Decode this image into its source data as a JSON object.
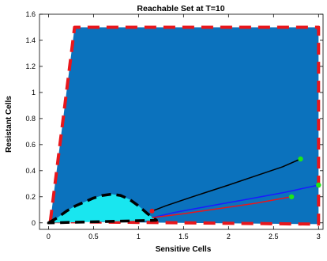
{
  "chart_data": {
    "type": "area",
    "title": "Reachable Set at T=10",
    "xlabel": "Sensitive Cells",
    "ylabel": "Resistant Cells",
    "xlim": [
      -0.1,
      3.05
    ],
    "ylim": [
      -0.05,
      1.6
    ],
    "xticks": [
      0,
      0.5,
      1,
      1.5,
      2,
      2.5,
      3
    ],
    "xtick_labels": [
      "0",
      "0.5",
      "1",
      "1.5",
      "2",
      "2.5",
      "3"
    ],
    "yticks": [
      0,
      0.2,
      0.4,
      0.6,
      0.8,
      1,
      1.2,
      1.4,
      1.6
    ],
    "ytick_labels": [
      "0",
      "0.2",
      "0.4",
      "0.6",
      "0.8",
      "1",
      "1.2",
      "1.4",
      "1.6"
    ],
    "grid": false,
    "legend": "none",
    "colors": {
      "reachable_fill": "#0b72bd",
      "reachable_boundary": "#e8161b",
      "inner_fill": "#19e6ef",
      "inner_boundary": "#000000",
      "trajectory_black": "#000000",
      "trajectory_blue": "#1a1aff",
      "trajectory_red": "#e8161b",
      "endpoint": "#1ee619"
    },
    "reachable_region": {
      "x": [
        0.02,
        0.29,
        3.0,
        3.0,
        0.02
      ],
      "y": [
        0.01,
        1.5,
        1.5,
        -0.01,
        0.01
      ]
    },
    "inner_region": {
      "x": [
        0.0,
        0.1,
        0.2,
        0.3,
        0.4,
        0.5,
        0.6,
        0.7,
        0.8,
        0.9,
        1.0,
        1.1,
        1.2,
        0.0
      ],
      "y": [
        0.0,
        0.04,
        0.09,
        0.13,
        0.16,
        0.19,
        0.21,
        0.22,
        0.21,
        0.18,
        0.13,
        0.07,
        0.02,
        0.0
      ]
    },
    "trajectories": [
      {
        "color": "black",
        "x": [
          1.15,
          1.3,
          1.6,
          2.0,
          2.3,
          2.6,
          2.8
        ],
        "y": [
          0.09,
          0.13,
          0.2,
          0.29,
          0.36,
          0.43,
          0.49
        ]
      },
      {
        "color": "blue",
        "x": [
          1.15,
          1.4,
          1.8,
          2.2,
          2.6,
          3.0
        ],
        "y": [
          0.04,
          0.08,
          0.13,
          0.18,
          0.23,
          0.29
        ]
      },
      {
        "color": "red",
        "x": [
          1.15,
          1.5,
          1.9,
          2.3,
          2.7
        ],
        "y": [
          0.04,
          0.07,
          0.11,
          0.15,
          0.2
        ]
      }
    ],
    "endpoints": [
      {
        "x": 2.8,
        "y": 0.49
      },
      {
        "x": 3.0,
        "y": 0.29
      },
      {
        "x": 2.7,
        "y": 0.2
      }
    ]
  }
}
